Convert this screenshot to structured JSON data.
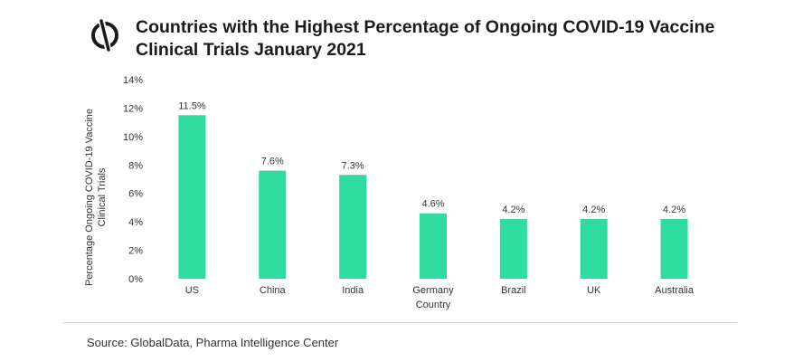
{
  "title": "Countries with the Highest Percentage of Ongoing COVID-19 Vaccine Clinical Trials January 2021",
  "source": "Source: GlobalData, Pharma Intelligence Center",
  "colors": {
    "bar": "#2ddc9e",
    "text": "#333333",
    "divider": "#cfcfcf"
  },
  "logo_icon": "globaldata-logo-icon",
  "chart_data": {
    "type": "bar",
    "title": "Countries with the Highest Percentage of Ongoing COVID-19 Vaccine Clinical Trials January 2021",
    "xlabel": "Country",
    "ylabel": "Percentage Ongoing COVID-19 Vaccine Clinical Trials",
    "categories": [
      "US",
      "China",
      "India",
      "Germany",
      "Brazil",
      "UK",
      "Australia"
    ],
    "values": [
      11.5,
      7.6,
      7.3,
      4.6,
      4.2,
      4.2,
      4.2
    ],
    "data_labels": [
      "11.5%",
      "7.6%",
      "7.3%",
      "4.6%",
      "4.2%",
      "4.2%",
      "4.2%"
    ],
    "yticks": [
      "0%",
      "2%",
      "4%",
      "6%",
      "8%",
      "10%",
      "12%",
      "14%"
    ],
    "ylim": [
      0,
      14
    ],
    "grid": false,
    "legend": "none"
  }
}
